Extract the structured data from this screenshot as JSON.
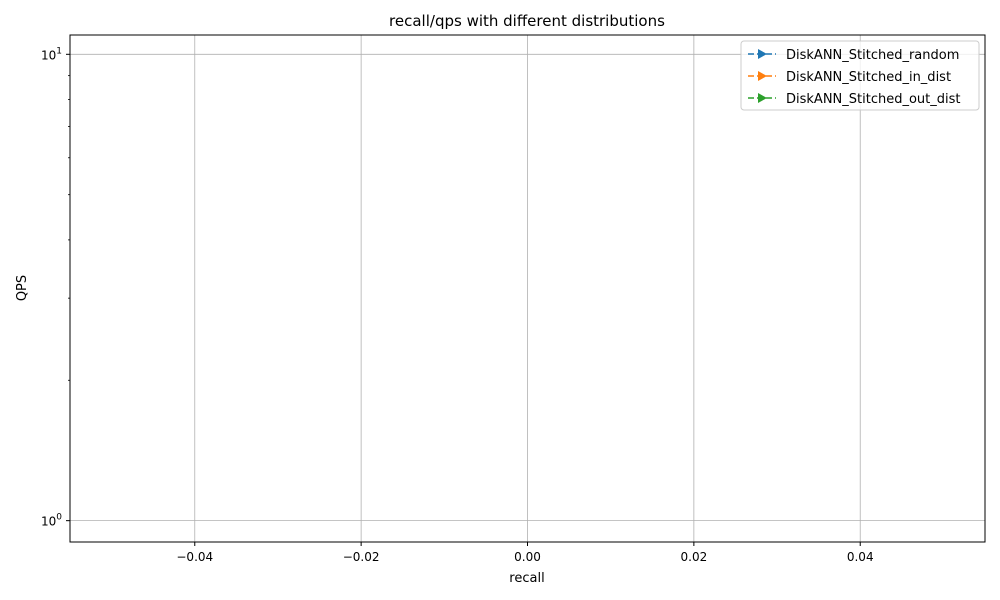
{
  "chart_data": {
    "type": "line",
    "title": "recall/qps with different distributions",
    "xlabel": "recall",
    "ylabel": "QPS",
    "xlim": [
      -0.055,
      0.055
    ],
    "ylim": [
      0.9,
      11
    ],
    "yscale": "log",
    "grid": true,
    "legend_position": "top-right",
    "x_ticks": [
      {
        "value": -0.04,
        "label": "−0.04"
      },
      {
        "value": -0.02,
        "label": "−0.02"
      },
      {
        "value": 0.0,
        "label": "0.00"
      },
      {
        "value": 0.02,
        "label": "0.02"
      },
      {
        "value": 0.04,
        "label": "0.04"
      }
    ],
    "y_ticks": [
      {
        "value": 1,
        "base": "10",
        "exp": "0"
      },
      {
        "value": 10,
        "base": "10",
        "exp": "1"
      }
    ],
    "y_minor_ticks": [
      2,
      3,
      4,
      5,
      6,
      7,
      8,
      9
    ],
    "series": [
      {
        "name": "DiskANN_Stitched_random",
        "color": "#1f77b4",
        "line_style": "dashed",
        "marker": "triangle-right",
        "x": [],
        "y": []
      },
      {
        "name": "DiskANN_Stitched_in_dist",
        "color": "#ff7f0e",
        "line_style": "dashed",
        "marker": "triangle-right",
        "x": [],
        "y": []
      },
      {
        "name": "DiskANN_Stitched_out_dist",
        "color": "#2ca02c",
        "line_style": "dashed",
        "marker": "triangle-right",
        "x": [],
        "y": []
      }
    ]
  }
}
